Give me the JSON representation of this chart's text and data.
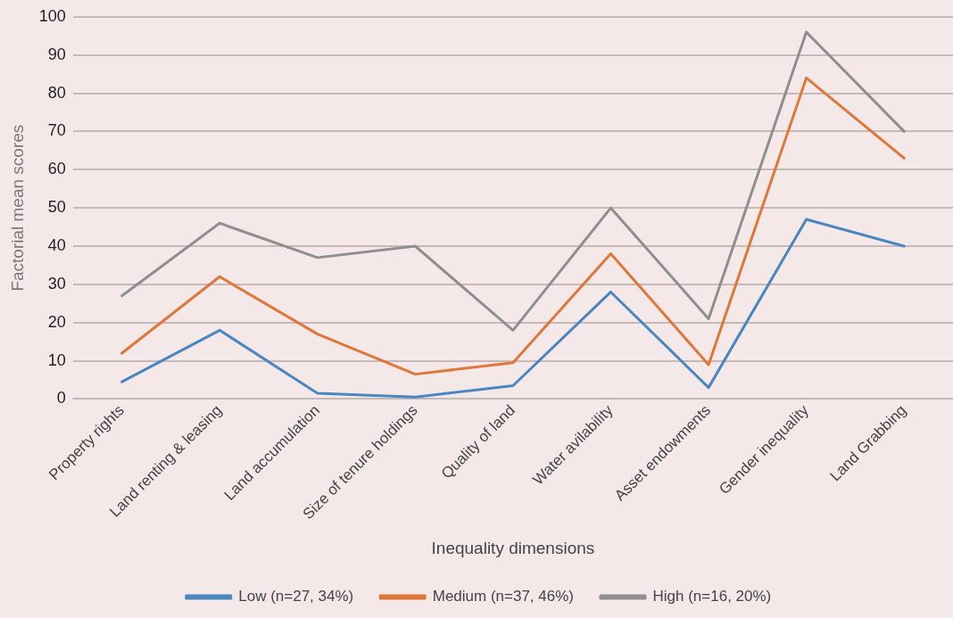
{
  "chart_data": {
    "type": "line",
    "xlabel": "Inequality dimensions",
    "ylabel": "Factorial mean scores",
    "categories": [
      "Property rights",
      "Land renting & leasing",
      "Land accumulation",
      "Size of tenure holdings",
      "Quality of land",
      "Water avilability",
      "Asset endowments",
      "Gender inequality",
      "Land Grabbing"
    ],
    "series": [
      {
        "name": "Low (n=27, 34%)",
        "color": "#4a86c0",
        "values": [
          4.5,
          18,
          1.5,
          0.5,
          3.5,
          28,
          3,
          47,
          40
        ]
      },
      {
        "name": "Medium (n=37, 46%)",
        "color": "#e0773a",
        "values": [
          12,
          32,
          17,
          6.5,
          9.5,
          38,
          9,
          84,
          63
        ]
      },
      {
        "name": "High (n=16, 20%)",
        "color": "#8f8f8f",
        "values": [
          27,
          46,
          37,
          40,
          18,
          50,
          21,
          96,
          70
        ]
      }
    ],
    "ylim": [
      0,
      100
    ],
    "yticks": [
      0,
      10,
      20,
      30,
      40,
      50,
      60,
      70,
      80,
      90,
      100
    ],
    "grid": "y",
    "legend": "bottom",
    "marker": "none",
    "line_style": "solid"
  }
}
